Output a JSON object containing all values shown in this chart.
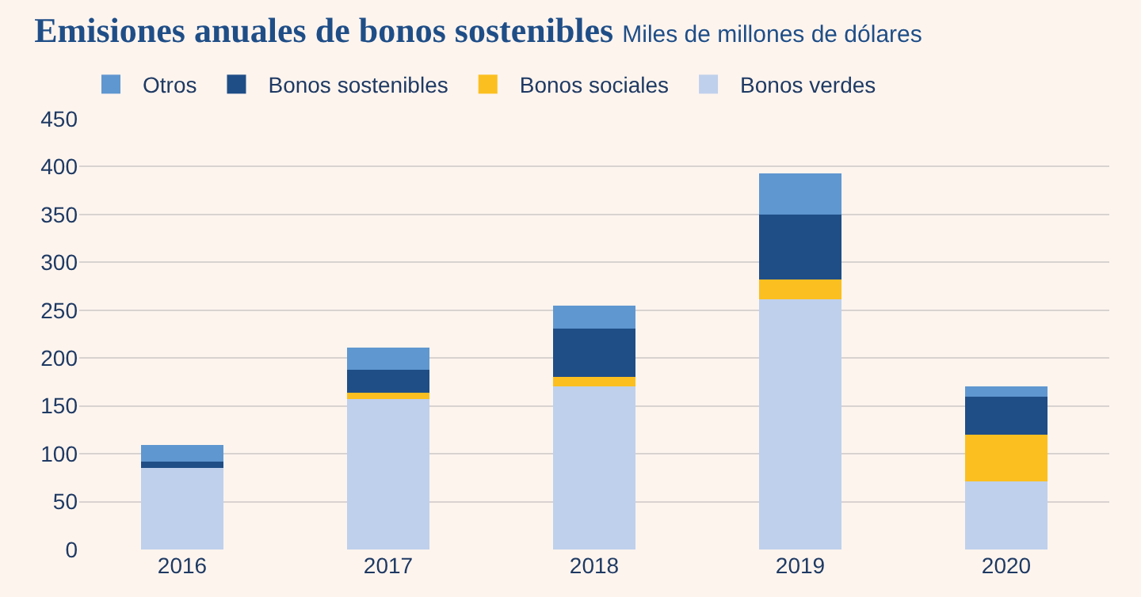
{
  "chart_data": {
    "type": "bar",
    "stacked": true,
    "title": "Emisiones anuales de bonos sostenibles",
    "subtitle": "Miles de millones de dólares",
    "categories": [
      "2016",
      "2017",
      "2018",
      "2019",
      "2020"
    ],
    "series": [
      {
        "name": "Bonos verdes",
        "color": "#bfd0ec",
        "values": [
          85,
          157,
          170,
          261,
          71
        ]
      },
      {
        "name": "Bonos sociales",
        "color": "#fbbf1f",
        "values": [
          0,
          7,
          10,
          21,
          49
        ]
      },
      {
        "name": "Bonos sostenibles",
        "color": "#1f4e87",
        "values": [
          7,
          24,
          51,
          68,
          40
        ]
      },
      {
        "name": "Otros",
        "color": "#5f97d0",
        "values": [
          17,
          23,
          24,
          43,
          10
        ]
      }
    ],
    "ylim": [
      0,
      450
    ],
    "yticks": [
      0,
      50,
      100,
      150,
      200,
      250,
      300,
      350,
      400,
      450
    ],
    "grid": "y",
    "legend": "top left"
  }
}
